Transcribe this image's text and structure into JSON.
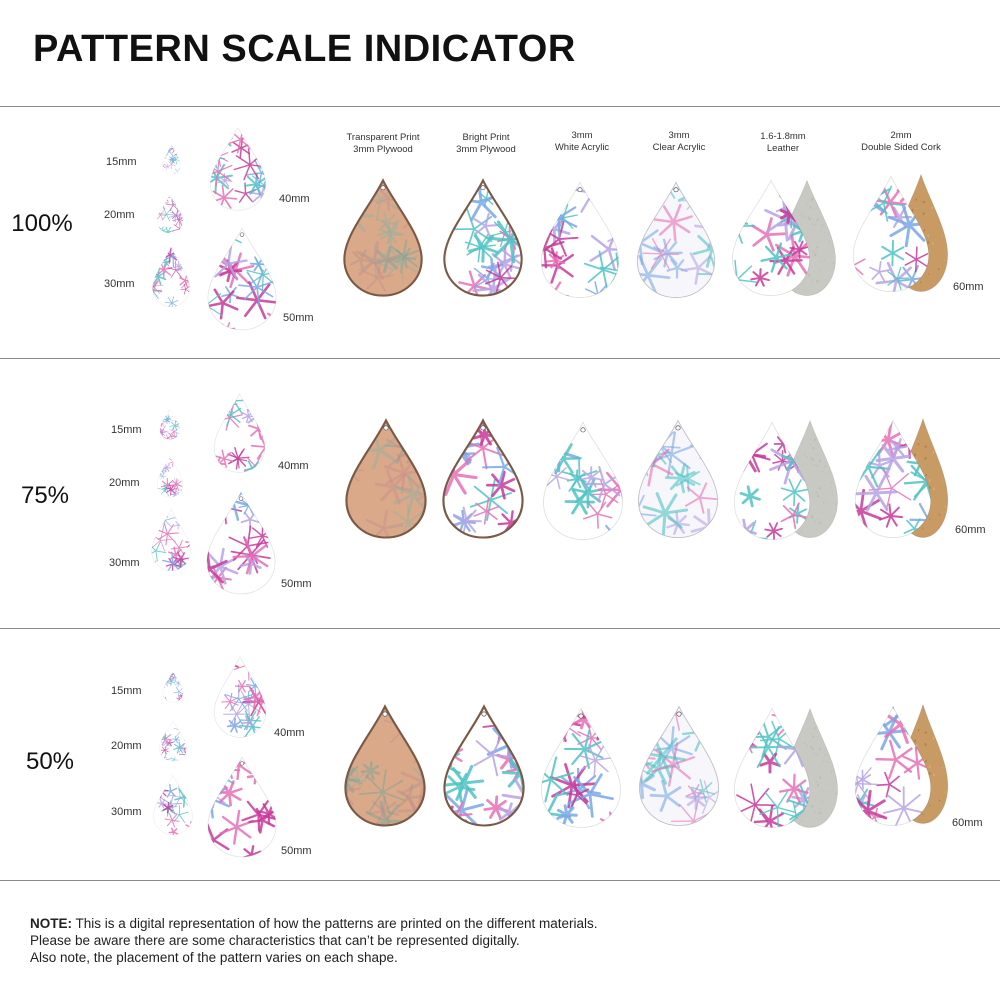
{
  "title": "PATTERN SCALE INDICATOR",
  "materials": [
    {
      "line1": "Transparent Print",
      "line2": "3mm Plywood"
    },
    {
      "line1": "Bright Print",
      "line2": "3mm Plywood"
    },
    {
      "line1": "3mm",
      "line2": "White Acrylic"
    },
    {
      "line1": "3mm",
      "line2": "Clear Acrylic"
    },
    {
      "line1": "1.6-1.8mm",
      "line2": "Leather"
    },
    {
      "line1": "2mm",
      "line2": "Double Sided Cork"
    }
  ],
  "sections": [
    {
      "scale": "100%",
      "sizes": {
        "s15": "15mm",
        "s20": "20mm",
        "s30": "30mm",
        "s40": "40mm",
        "s50": "50mm",
        "s60": "60mm"
      }
    },
    {
      "scale": "75%",
      "sizes": {
        "s15": "15mm",
        "s20": "20mm",
        "s30": "30mm",
        "s40": "40mm",
        "s50": "50mm",
        "s60": "60mm"
      }
    },
    {
      "scale": "50%",
      "sizes": {
        "s15": "15mm",
        "s20": "20mm",
        "s30": "30mm",
        "s40": "40mm",
        "s50": "50mm",
        "s60": "60mm"
      }
    }
  ],
  "note": {
    "label": "NOTE:",
    "line1": " This is a digital representation of how the patterns are printed on the different materials.",
    "line2": "Please be aware there are some characteristics that can’t be represented digitally.",
    "line3": "Also note, the placement of the pattern varies on each shape."
  },
  "colors": {
    "pink": "#e86fb6",
    "magenta": "#c8399a",
    "blue": "#7aa8e8",
    "teal": "#4fc3c4",
    "lavender": "#b8a4e6",
    "wood": "#d9a98a",
    "suede": "#c9c9c4",
    "cork": "#c89a64"
  }
}
